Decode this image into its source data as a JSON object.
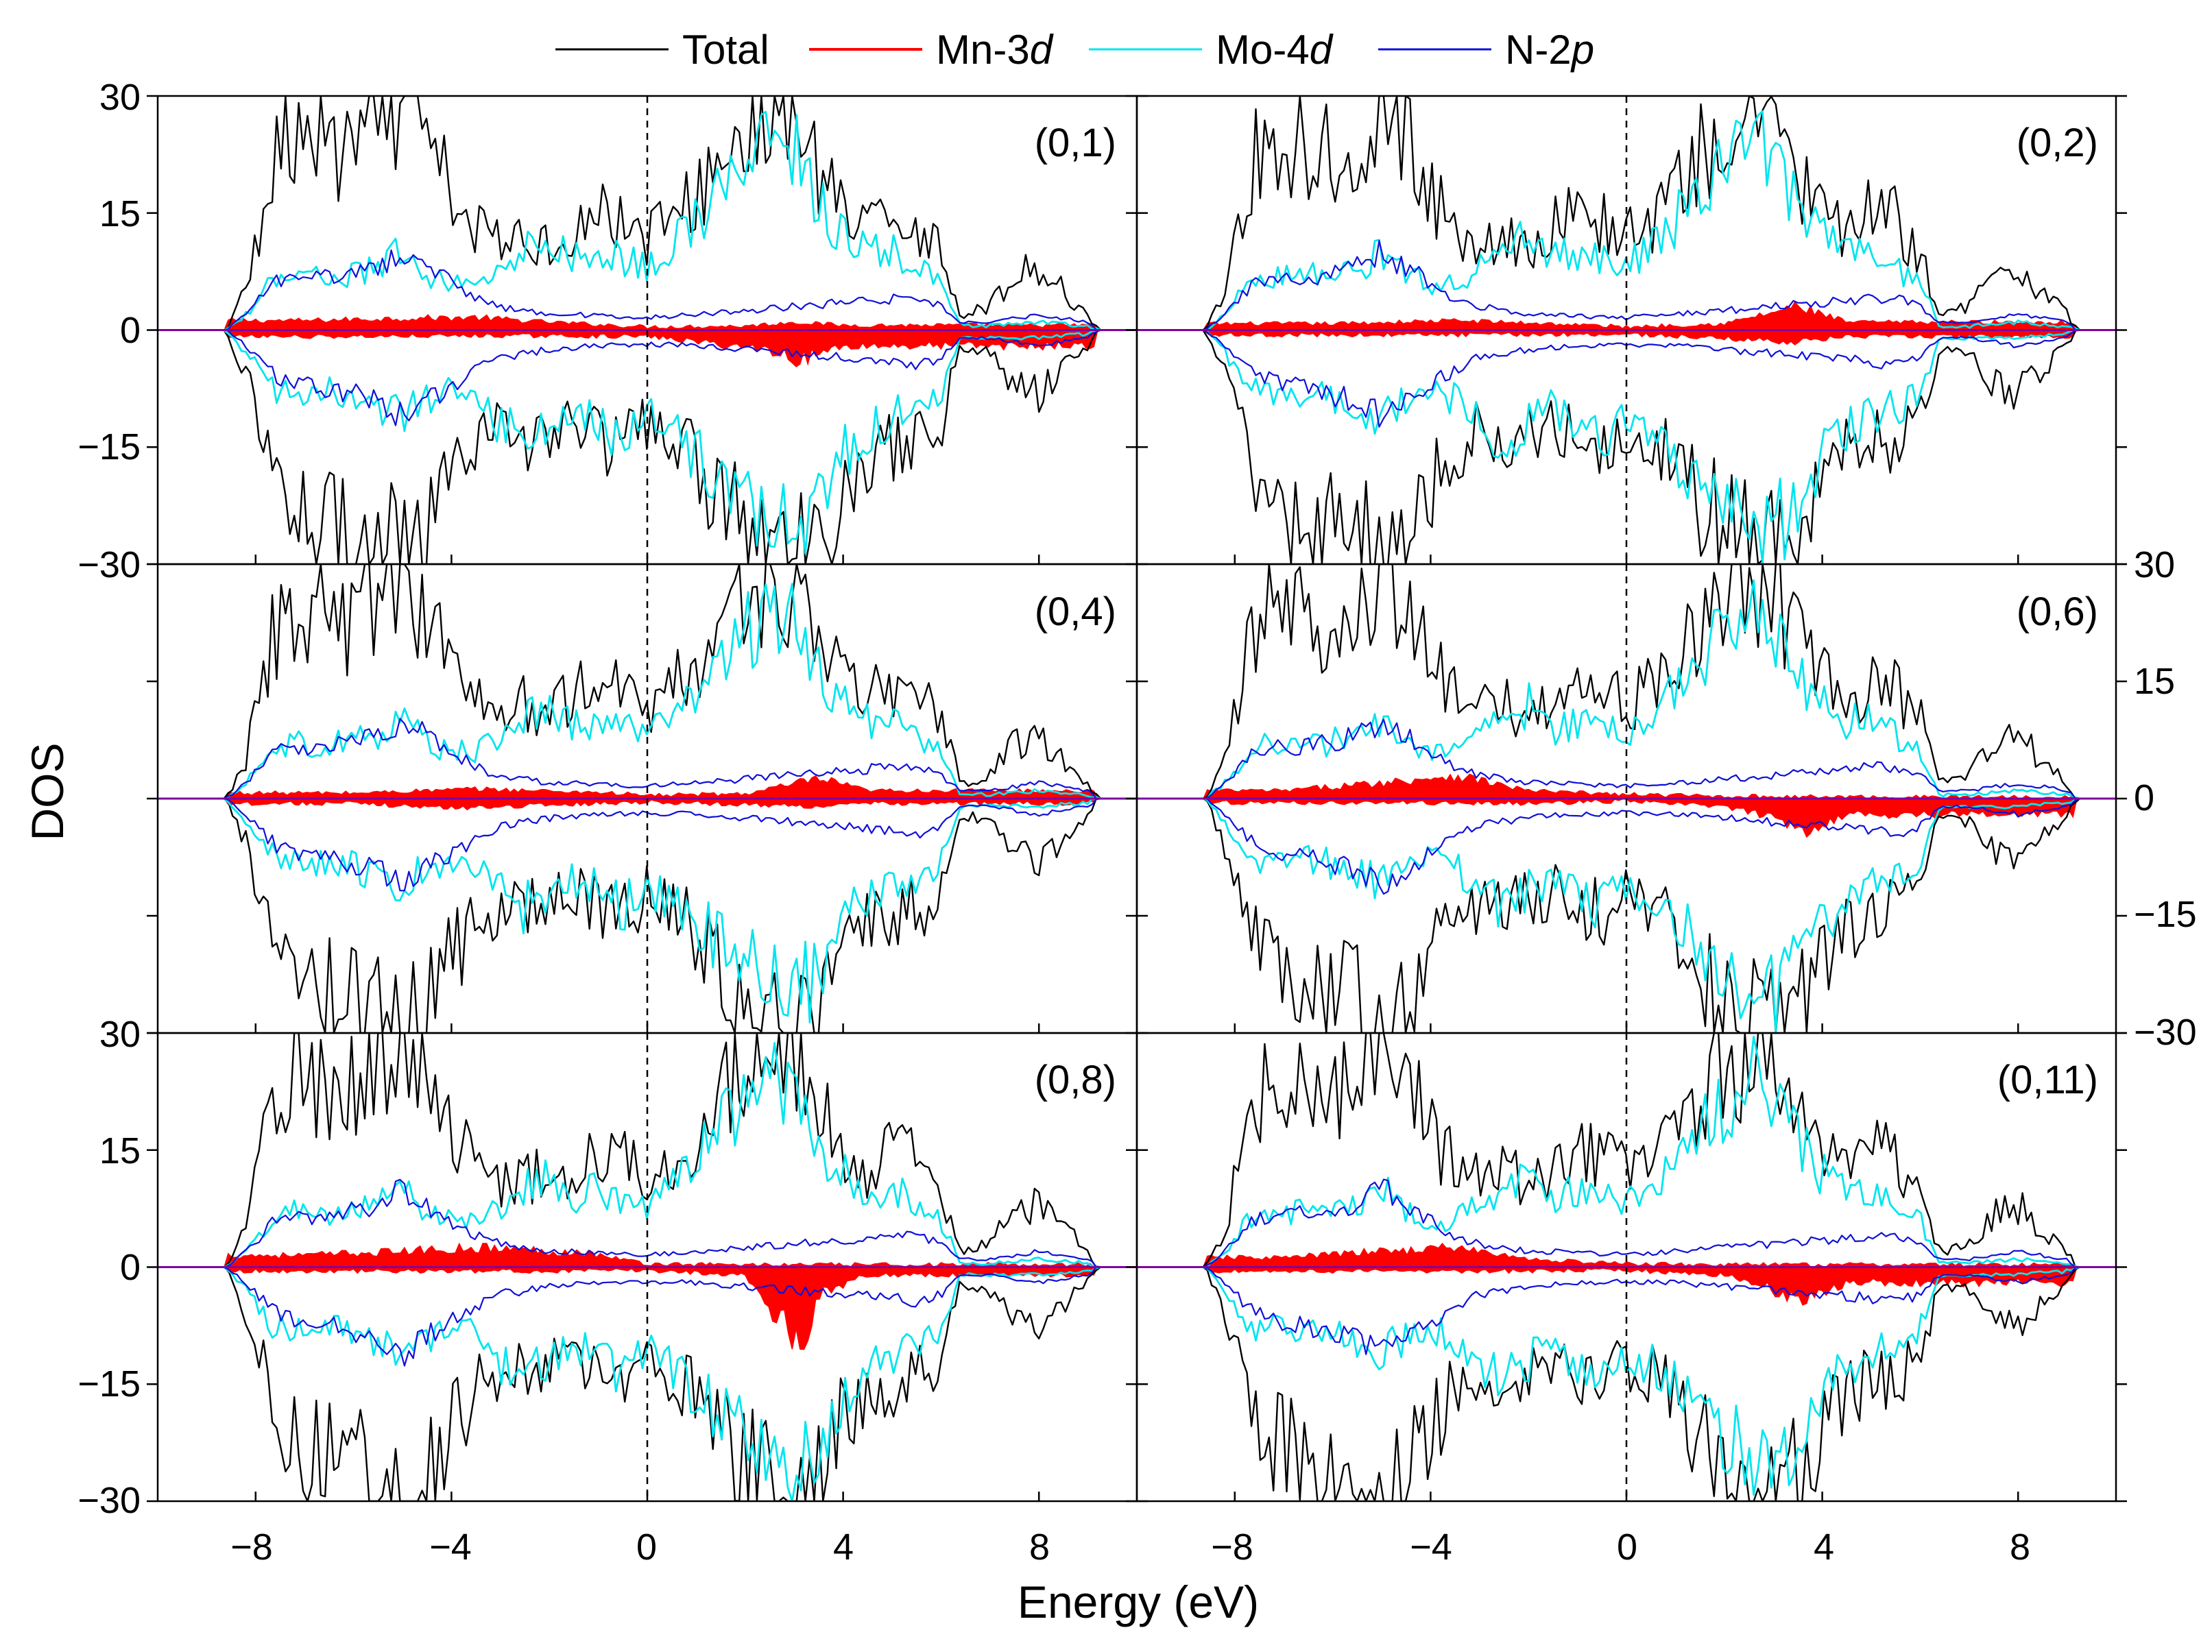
{
  "chart_data": {
    "type": "line",
    "xlabel": "Energy (eV)",
    "ylabel": "DOS",
    "xlim": [
      -10,
      10
    ],
    "ylim": [
      -30,
      30
    ],
    "x_ticks": [
      -8,
      -4,
      0,
      4,
      8
    ],
    "x_tick_labels": [
      "−8",
      "−4",
      "0",
      "4",
      "8"
    ],
    "y_ticks": [
      30,
      15,
      0,
      -15,
      -30
    ],
    "y_tick_labels": [
      "30",
      "15",
      "0",
      "−15",
      "−30"
    ],
    "fermi_level": 0,
    "legend": [
      {
        "name": "Total",
        "color": "#000000",
        "pre": "Total",
        "ital": "",
        "post": ""
      },
      {
        "name": "Mn-3d",
        "color": "#ff0000",
        "pre": "Mn-3",
        "ital": "d",
        "post": ""
      },
      {
        "name": "Mo-4d",
        "color": "#00e5ee",
        "pre": "Mo-4",
        "ital": "d",
        "post": ""
      },
      {
        "name": "N-2p",
        "color": "#1010d8",
        "pre": "N-2",
        "ital": "p",
        "post": ""
      }
    ],
    "panels": [
      {
        "label": "(0,1)",
        "mn_up": [
          [
            -7,
            1.2
          ],
          [
            -5,
            1.5
          ],
          [
            -3.5,
            1.6
          ],
          [
            -2,
            1
          ],
          [
            0,
            0.4
          ],
          [
            2,
            0.5
          ],
          [
            3,
            1
          ],
          [
            4,
            0.6
          ]
        ],
        "mn_dn": [
          [
            -6,
            -0.8
          ],
          [
            -3,
            -0.7
          ],
          [
            0,
            -0.8
          ],
          [
            2.5,
            -2.5
          ],
          [
            3.1,
            -3.8
          ],
          [
            4,
            -2
          ]
        ],
        "fill_n": false,
        "fill_s": true
      },
      {
        "label": "(0,2)",
        "mn_up": [
          [
            -6,
            0.8
          ],
          [
            -3.5,
            1.2
          ],
          [
            -1.5,
            0.8
          ],
          [
            0,
            0.4
          ],
          [
            2,
            0.8
          ],
          [
            3.5,
            3
          ],
          [
            4.5,
            1
          ]
        ],
        "mn_dn": [
          [
            -6,
            -0.6
          ],
          [
            -3.5,
            -0.6
          ],
          [
            0,
            -0.5
          ],
          [
            3.5,
            -1.5
          ],
          [
            4.5,
            -0.8
          ]
        ],
        "fill_n": false,
        "fill_s": false
      },
      {
        "label": "(0,4)",
        "mn_up": [
          [
            -6,
            0.7
          ],
          [
            -3.5,
            1.2
          ],
          [
            -1,
            0.8
          ],
          [
            0,
            0.4
          ],
          [
            2,
            0.6
          ],
          [
            3.5,
            2.5
          ],
          [
            4.5,
            1
          ]
        ],
        "mn_dn": [
          [
            -6,
            -0.6
          ],
          [
            -4,
            -1.2
          ],
          [
            -1,
            -0.6
          ],
          [
            0,
            -0.4
          ],
          [
            3.5,
            -1
          ],
          [
            4.5,
            -0.6
          ]
        ],
        "fill_n": false,
        "fill_s": false
      },
      {
        "label": "(0,6)",
        "mn_up": [
          [
            -7,
            1
          ],
          [
            -5,
            2
          ],
          [
            -3.5,
            3
          ],
          [
            -2,
            1
          ],
          [
            0,
            0.5
          ],
          [
            2,
            0.3
          ],
          [
            4,
            0.2
          ]
        ],
        "mn_dn": [
          [
            -5,
            -0.5
          ],
          [
            -2,
            -0.6
          ],
          [
            0,
            -0.3
          ],
          [
            2,
            -1
          ],
          [
            3.3,
            -3
          ],
          [
            3.7,
            -4
          ],
          [
            4.5,
            -2
          ]
        ],
        "fill_n": false,
        "fill_s": false
      },
      {
        "label": "(0,8)",
        "mn_up": [
          [
            -7,
            1.5
          ],
          [
            -5,
            2
          ],
          [
            -3.5,
            2.5
          ],
          [
            -1.2,
            1.8
          ],
          [
            0,
            0.4
          ],
          [
            2,
            0.3
          ],
          [
            4,
            0.3
          ]
        ],
        "mn_dn": [
          [
            -5,
            -0.5
          ],
          [
            -2,
            -0.5
          ],
          [
            0,
            -0.4
          ],
          [
            2,
            -1
          ],
          [
            3.1,
            -10
          ],
          [
            3.6,
            -3
          ],
          [
            4.5,
            -1
          ]
        ],
        "fill_n": false,
        "fill_s": false
      },
      {
        "label": "(0,11)",
        "mn_up": [
          [
            -7,
            1.2
          ],
          [
            -5,
            2
          ],
          [
            -3.5,
            2.5
          ],
          [
            -2,
            1
          ],
          [
            0,
            0.4
          ],
          [
            2,
            0.3
          ],
          [
            4,
            0.3
          ]
        ],
        "mn_dn": [
          [
            -5,
            -0.5
          ],
          [
            -2,
            -0.5
          ],
          [
            0,
            -0.4
          ],
          [
            2,
            -1
          ],
          [
            3.3,
            -3.5
          ],
          [
            3.7,
            -4
          ],
          [
            4.5,
            -2
          ]
        ],
        "fill_n": false,
        "fill_s": false
      }
    ],
    "series_shape": {
      "total_up": [
        [
          -8.6,
          0
        ],
        [
          -8.2,
          5
        ],
        [
          -7.6,
          22
        ],
        [
          -7,
          25
        ],
        [
          -6.2,
          22
        ],
        [
          -5.5,
          26
        ],
        [
          -5,
          30
        ],
        [
          -4.5,
          24
        ],
        [
          -4,
          17
        ],
        [
          -3.5,
          13
        ],
        [
          -3,
          11
        ],
        [
          -2.5,
          12
        ],
        [
          -2,
          11
        ],
        [
          -1.5,
          13
        ],
        [
          -1,
          15
        ],
        [
          -0.5,
          14
        ],
        [
          0,
          12
        ],
        [
          0.5,
          14
        ],
        [
          1,
          17
        ],
        [
          1.5,
          22
        ],
        [
          2,
          25
        ],
        [
          2.5,
          28
        ],
        [
          3,
          27
        ],
        [
          3.5,
          20
        ],
        [
          4,
          15
        ],
        [
          4.5,
          12
        ],
        [
          5,
          15
        ],
        [
          5.5,
          14
        ],
        [
          6,
          10
        ],
        [
          6.4,
          2
        ],
        [
          7,
          3
        ],
        [
          7.5,
          7
        ],
        [
          8,
          8
        ],
        [
          8.5,
          5
        ],
        [
          9,
          2
        ],
        [
          9.2,
          0
        ]
      ],
      "total_dn": [
        [
          -8.6,
          0
        ],
        [
          -8.2,
          -6
        ],
        [
          -7.6,
          -18
        ],
        [
          -7,
          -24
        ],
        [
          -6.2,
          -26
        ],
        [
          -5.5,
          -26
        ],
        [
          -5,
          -30
        ],
        [
          -4.5,
          -27
        ],
        [
          -4,
          -20
        ],
        [
          -3.5,
          -16
        ],
        [
          -3,
          -13
        ],
        [
          -2.5,
          -14
        ],
        [
          -2,
          -13
        ],
        [
          -1.5,
          -12
        ],
        [
          -1,
          -14
        ],
        [
          -0.5,
          -15
        ],
        [
          0,
          -12
        ],
        [
          0.5,
          -14
        ],
        [
          1,
          -17
        ],
        [
          1.5,
          -22
        ],
        [
          2,
          -25
        ],
        [
          2.5,
          -28
        ],
        [
          3,
          -30
        ],
        [
          3.5,
          -27
        ],
        [
          4,
          -20
        ],
        [
          4.5,
          -16
        ],
        [
          5,
          -15
        ],
        [
          5.5,
          -14
        ],
        [
          6,
          -12
        ],
        [
          6.4,
          -2
        ],
        [
          7,
          -3
        ],
        [
          7.5,
          -7
        ],
        [
          8,
          -8
        ],
        [
          8.5,
          -5
        ],
        [
          9,
          -2
        ],
        [
          9.2,
          0
        ]
      ],
      "mo_up": [
        [
          -8.6,
          0
        ],
        [
          -8.2,
          2
        ],
        [
          -7.6,
          7
        ],
        [
          -7,
          7
        ],
        [
          -6.2,
          7
        ],
        [
          -5.5,
          8
        ],
        [
          -5,
          10
        ],
        [
          -4.5,
          7
        ],
        [
          -4,
          6
        ],
        [
          -3.5,
          6
        ],
        [
          -3,
          8
        ],
        [
          -2.5,
          10
        ],
        [
          -2,
          12
        ],
        [
          -1.5,
          9
        ],
        [
          -1,
          10
        ],
        [
          -0.5,
          9
        ],
        [
          0,
          8
        ],
        [
          0.5,
          11
        ],
        [
          1,
          14
        ],
        [
          1.5,
          18
        ],
        [
          2,
          21
        ],
        [
          2.5,
          24
        ],
        [
          3,
          23
        ],
        [
          3.5,
          16
        ],
        [
          4,
          12
        ],
        [
          4.5,
          10
        ],
        [
          5,
          10
        ],
        [
          5.5,
          8
        ],
        [
          6,
          6
        ],
        [
          6.4,
          0.5
        ],
        [
          7,
          0.5
        ],
        [
          8,
          1
        ],
        [
          9,
          0.5
        ],
        [
          9.2,
          0
        ]
      ],
      "mo_dn": [
        [
          -8.6,
          0
        ],
        [
          -8.2,
          -3
        ],
        [
          -7.6,
          -8
        ],
        [
          -7,
          -8
        ],
        [
          -6.2,
          -8
        ],
        [
          -5.5,
          -10
        ],
        [
          -5,
          -11
        ],
        [
          -4.5,
          -9
        ],
        [
          -4,
          -8
        ],
        [
          -3.5,
          -9
        ],
        [
          -3,
          -12
        ],
        [
          -2.5,
          -14
        ],
        [
          -2,
          -12
        ],
        [
          -1.5,
          -10
        ],
        [
          -1,
          -12
        ],
        [
          -0.5,
          -14
        ],
        [
          0,
          -11
        ],
        [
          0.5,
          -13
        ],
        [
          1,
          -16
        ],
        [
          1.5,
          -19
        ],
        [
          2,
          -21
        ],
        [
          2.5,
          -24
        ],
        [
          3,
          -26
        ],
        [
          3.5,
          -22
        ],
        [
          4,
          -16
        ],
        [
          4.5,
          -13
        ],
        [
          5,
          -11
        ],
        [
          5.5,
          -10
        ],
        [
          6,
          -8
        ],
        [
          6.4,
          -1
        ],
        [
          7,
          -1
        ],
        [
          8,
          -1
        ],
        [
          9,
          -0.5
        ],
        [
          9.2,
          0
        ]
      ],
      "n_up": [
        [
          -8.6,
          0
        ],
        [
          -8.2,
          2
        ],
        [
          -7.6,
          6
        ],
        [
          -7,
          6.5
        ],
        [
          -6.2,
          7
        ],
        [
          -5.5,
          8
        ],
        [
          -5,
          10
        ],
        [
          -4.5,
          8
        ],
        [
          -4,
          6
        ],
        [
          -3.5,
          4
        ],
        [
          -3,
          3
        ],
        [
          -2.5,
          2.5
        ],
        [
          -2,
          2
        ],
        [
          -1.5,
          2
        ],
        [
          -1,
          1.8
        ],
        [
          0,
          1.6
        ],
        [
          1,
          2
        ],
        [
          2,
          2.5
        ],
        [
          3,
          3
        ],
        [
          4,
          3.5
        ],
        [
          5,
          4
        ],
        [
          5.5,
          4
        ],
        [
          6,
          3
        ],
        [
          6.4,
          1
        ],
        [
          7,
          1
        ],
        [
          8,
          2
        ],
        [
          9,
          1
        ],
        [
          9.2,
          0
        ]
      ],
      "n_dn": [
        [
          -8.6,
          0
        ],
        [
          -8.2,
          -2
        ],
        [
          -7.6,
          -6
        ],
        [
          -7,
          -7
        ],
        [
          -6.2,
          -8
        ],
        [
          -5.5,
          -9
        ],
        [
          -5,
          -11
        ],
        [
          -4.5,
          -9
        ],
        [
          -4,
          -7
        ],
        [
          -3.5,
          -5
        ],
        [
          -3,
          -3.5
        ],
        [
          -2.5,
          -3
        ],
        [
          -2,
          -2.5
        ],
        [
          -1,
          -2
        ],
        [
          0,
          -1.8
        ],
        [
          1,
          -2
        ],
        [
          2,
          -2.5
        ],
        [
          3,
          -3
        ],
        [
          4,
          -3.5
        ],
        [
          5,
          -4
        ],
        [
          5.5,
          -4.5
        ],
        [
          6,
          -3.5
        ],
        [
          6.4,
          -1
        ],
        [
          7,
          -1
        ],
        [
          8,
          -2
        ],
        [
          9,
          -1
        ],
        [
          9.2,
          0
        ]
      ]
    }
  }
}
